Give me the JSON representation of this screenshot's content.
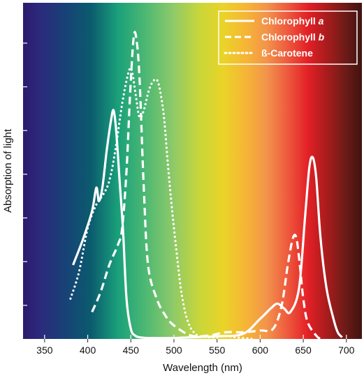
{
  "chart_data": {
    "type": "line",
    "xlabel": "Wavelength (nm)",
    "ylabel": "Absorption of light",
    "xlim": [
      325,
      718
    ],
    "ylim": [
      0,
      100
    ],
    "x_ticks": [
      350,
      400,
      450,
      500,
      550,
      600,
      650,
      700
    ],
    "y_ticks": [
      10,
      23,
      36,
      49,
      62,
      75,
      88
    ],
    "y_tick_labels_shown": false,
    "grid": false,
    "background": "visible-spectrum gradient",
    "legend": {
      "placement": "top-right",
      "entries": [
        {
          "prefix": "Chlorophyll ",
          "italic": "a",
          "style": "solid"
        },
        {
          "prefix": "Chlorophyll ",
          "italic": "b",
          "style": "dashed"
        },
        {
          "prefix": "ß-Carotene",
          "italic": "",
          "style": "dotted"
        }
      ]
    },
    "series": [
      {
        "name": "Chlorophyll a",
        "style": "solid",
        "color": "#ffffff",
        "points": [
          [
            383,
            22
          ],
          [
            395,
            30
          ],
          [
            405,
            38
          ],
          [
            410,
            45
          ],
          [
            413,
            41
          ],
          [
            417,
            45
          ],
          [
            422,
            56
          ],
          [
            427,
            65
          ],
          [
            430,
            68
          ],
          [
            433,
            62
          ],
          [
            437,
            47
          ],
          [
            441,
            32
          ],
          [
            445,
            12
          ],
          [
            450,
            3
          ],
          [
            455,
            1
          ],
          [
            460,
            0.5
          ],
          [
            470,
            0.3
          ],
          [
            500,
            0.3
          ],
          [
            530,
            0.6
          ],
          [
            550,
            0.8
          ],
          [
            580,
            1.5
          ],
          [
            600,
            6
          ],
          [
            612,
            9
          ],
          [
            620,
            10.5
          ],
          [
            628,
            9
          ],
          [
            635,
            8
          ],
          [
            645,
            15
          ],
          [
            652,
            36
          ],
          [
            657,
            51
          ],
          [
            661,
            54
          ],
          [
            665,
            48
          ],
          [
            670,
            30
          ],
          [
            677,
            15
          ],
          [
            685,
            6
          ],
          [
            690,
            2
          ],
          [
            695,
            0.5
          ]
        ]
      },
      {
        "name": "Chlorophyll b",
        "style": "dashed",
        "color": "#ffffff",
        "points": [
          [
            405,
            8
          ],
          [
            415,
            14
          ],
          [
            425,
            22
          ],
          [
            435,
            28
          ],
          [
            440,
            33
          ],
          [
            445,
            50
          ],
          [
            449,
            72
          ],
          [
            453,
            89
          ],
          [
            456,
            90
          ],
          [
            460,
            78
          ],
          [
            465,
            45
          ],
          [
            470,
            22
          ],
          [
            480,
            12
          ],
          [
            490,
            7
          ],
          [
            500,
            4
          ],
          [
            520,
            1
          ],
          [
            540,
            1
          ],
          [
            560,
            2
          ],
          [
            580,
            2
          ],
          [
            600,
            2.5
          ],
          [
            615,
            3
          ],
          [
            625,
            10
          ],
          [
            632,
            22
          ],
          [
            638,
            30
          ],
          [
            642,
            30
          ],
          [
            646,
            22
          ],
          [
            650,
            12
          ],
          [
            655,
            5
          ],
          [
            665,
            1
          ],
          [
            670,
            0
          ]
        ]
      },
      {
        "name": "ß-Carotene",
        "style": "dotted",
        "color": "#ffffff",
        "points": [
          [
            380,
            12
          ],
          [
            390,
            20
          ],
          [
            400,
            33
          ],
          [
            410,
            40
          ],
          [
            418,
            43
          ],
          [
            425,
            47
          ],
          [
            432,
            56
          ],
          [
            440,
            70
          ],
          [
            447,
            79
          ],
          [
            451,
            80
          ],
          [
            456,
            72
          ],
          [
            460,
            66
          ],
          [
            465,
            68
          ],
          [
            471,
            74
          ],
          [
            477,
            77
          ],
          [
            482,
            76
          ],
          [
            488,
            67
          ],
          [
            493,
            52
          ],
          [
            498,
            38
          ],
          [
            503,
            26
          ],
          [
            508,
            15
          ],
          [
            513,
            8
          ],
          [
            518,
            4
          ],
          [
            523,
            2
          ],
          [
            530,
            0.8
          ],
          [
            545,
            0.5
          ],
          [
            560,
            0.8
          ],
          [
            575,
            0.4
          ],
          [
            590,
            0
          ]
        ]
      }
    ]
  }
}
